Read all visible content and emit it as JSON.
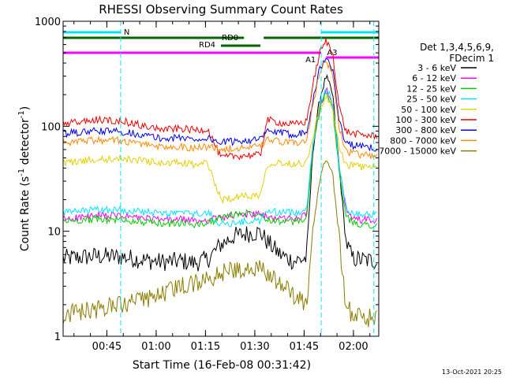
{
  "chart_data": {
    "type": "line",
    "title": "RHESSI Observing Summary Count Rates",
    "xlabel": "Start Time (16-Feb-08 00:31:42)",
    "ylabel_main": "Count Rate (s",
    "ylabel_sup1": "-1",
    "ylabel_mid": " detector",
    "ylabel_sup2": "-1",
    "ylabel_end": ")",
    "yscale": "log",
    "ylim": [
      1,
      1000
    ],
    "xlim_minutes": [
      0,
      96
    ],
    "x_ticks": [
      {
        "label": "00:45",
        "minutes": 13.3
      },
      {
        "label": "01:00",
        "minutes": 28.3
      },
      {
        "label": "01:15",
        "minutes": 43.3
      },
      {
        "label": "01:30",
        "minutes": 58.3
      },
      {
        "label": "01:45",
        "minutes": 73.3
      },
      {
        "label": "02:00",
        "minutes": 88.3
      }
    ],
    "y_ticks": [
      {
        "label": "1",
        "value": 1
      },
      {
        "label": "10",
        "value": 10
      },
      {
        "label": "100",
        "value": 100
      },
      {
        "label": "1000",
        "value": 1000
      }
    ],
    "legend_header": [
      "Det 1,3,4,5,6,9,",
      "FDecim 1"
    ],
    "series": [
      {
        "name": "3 - 6 keV",
        "color": "#000000",
        "x": [
          0,
          10,
          18,
          25,
          30,
          36,
          40,
          44,
          48,
          52,
          56,
          60,
          62,
          66,
          70,
          74,
          76,
          78,
          80,
          82,
          84,
          86,
          88,
          92,
          96
        ],
        "y": [
          5.5,
          5.8,
          5.7,
          5.3,
          5.1,
          5.2,
          5.0,
          5.4,
          7.5,
          9.0,
          9.5,
          9.8,
          8.0,
          6.0,
          5.2,
          5.5,
          60,
          180,
          300,
          200,
          40,
          8,
          5.5,
          5.3,
          5.2
        ]
      },
      {
        "name": "6 - 12 keV",
        "color": "#ff00ff",
        "x": [
          0,
          10,
          18,
          25,
          30,
          36,
          40,
          44,
          48,
          52,
          56,
          60,
          62,
          66,
          70,
          74,
          76,
          78,
          80,
          82,
          84,
          86,
          88,
          92,
          96
        ],
        "y": [
          13,
          14,
          14,
          13.2,
          12.8,
          13,
          12.5,
          12.8,
          13.5,
          14,
          14.5,
          14.5,
          13.5,
          13.3,
          13.2,
          14,
          70,
          150,
          240,
          160,
          40,
          16,
          13,
          12.8,
          12.6
        ]
      },
      {
        "name": "12 - 25 keV",
        "color": "#00cc00",
        "x": [
          0,
          10,
          18,
          25,
          30,
          36,
          40,
          44,
          48,
          52,
          56,
          60,
          62,
          66,
          70,
          74,
          76,
          78,
          80,
          82,
          84,
          86,
          88,
          92,
          96
        ],
        "y": [
          12.5,
          13,
          12.8,
          12.2,
          11.8,
          12,
          11.5,
          12,
          13.5,
          14.5,
          15,
          15,
          13,
          12.5,
          12.2,
          13,
          60,
          140,
          220,
          150,
          35,
          14,
          12,
          11.6,
          11.4
        ]
      },
      {
        "name": "25 - 50 keV",
        "color": "#00e5ff",
        "x": [
          0,
          10,
          18,
          25,
          30,
          36,
          40,
          44,
          48,
          52,
          56,
          60,
          62,
          66,
          70,
          74,
          76,
          78,
          80,
          82,
          84,
          86,
          88,
          92,
          96
        ],
        "y": [
          15,
          16,
          16,
          15.2,
          14.6,
          15,
          14.5,
          15,
          11.5,
          12,
          12.5,
          12.5,
          15.5,
          15.2,
          15,
          16,
          70,
          160,
          230,
          170,
          40,
          17,
          15,
          14.5,
          14.3
        ]
      },
      {
        "name": "50 - 100 keV",
        "color": "#e5d000",
        "x": [
          0,
          10,
          18,
          25,
          30,
          36,
          40,
          44,
          48,
          52,
          56,
          60,
          62,
          66,
          70,
          74,
          76,
          78,
          80,
          82,
          84,
          86,
          88,
          92,
          96
        ],
        "y": [
          45,
          48,
          49,
          47,
          44,
          45,
          43,
          44,
          20,
          21,
          22,
          22,
          44,
          45,
          44,
          45,
          80,
          150,
          190,
          150,
          60,
          44,
          42,
          41,
          40
        ]
      },
      {
        "name": "100 - 300 keV",
        "color": "#ee0000",
        "x": [
          0,
          10,
          18,
          25,
          30,
          36,
          40,
          44,
          48,
          52,
          56,
          60,
          62,
          66,
          70,
          74,
          76,
          78,
          80,
          82,
          84,
          86,
          88,
          92,
          96
        ],
        "y": [
          105,
          115,
          112,
          100,
          93,
          95,
          92,
          94,
          50,
          52,
          53,
          53,
          115,
          108,
          104,
          110,
          250,
          500,
          650,
          500,
          150,
          90,
          85,
          82,
          80
        ]
      },
      {
        "name": "300 - 800 keV",
        "color": "#0000ee",
        "x": [
          0,
          10,
          18,
          25,
          30,
          36,
          40,
          44,
          48,
          52,
          56,
          60,
          62,
          66,
          70,
          74,
          76,
          78,
          80,
          82,
          84,
          86,
          88,
          92,
          96
        ],
        "y": [
          85,
          90,
          89,
          82,
          76,
          78,
          75,
          77,
          70,
          72,
          74,
          74,
          90,
          86,
          84,
          88,
          180,
          350,
          450,
          350,
          110,
          70,
          66,
          63,
          62
        ]
      },
      {
        "name": "800 - 7000 keV",
        "color": "#ff8800",
        "x": [
          0,
          10,
          18,
          25,
          30,
          36,
          40,
          44,
          48,
          52,
          56,
          60,
          62,
          66,
          70,
          74,
          76,
          78,
          80,
          82,
          84,
          86,
          88,
          92,
          96
        ],
        "y": [
          70,
          74,
          73,
          67,
          63,
          64,
          62,
          64,
          60,
          62,
          63,
          63,
          74,
          71,
          69,
          72,
          160,
          320,
          420,
          320,
          95,
          58,
          55,
          53,
          52
        ]
      },
      {
        "name": "7000 - 15000 keV",
        "color": "#8b7d00",
        "x": [
          0,
          10,
          18,
          25,
          30,
          36,
          40,
          44,
          48,
          52,
          56,
          60,
          62,
          66,
          70,
          74,
          76,
          78,
          80,
          82,
          84,
          86,
          88,
          92,
          96
        ],
        "y": [
          1.6,
          1.8,
          2.0,
          2.2,
          2.5,
          3.0,
          3.2,
          3.5,
          4.0,
          4.3,
          4.5,
          4.4,
          4.0,
          3.2,
          2.5,
          2.0,
          10,
          30,
          50,
          35,
          8,
          2.0,
          1.6,
          1.5,
          1.5
        ]
      }
    ],
    "annotations": {
      "N_label": "N",
      "RD0_label": "RD0",
      "RD4_label": "RD4",
      "A1_label": "A1",
      "A3_label": "A3",
      "night_color": "#00e5ff",
      "rd_color": "#006600",
      "atten_color": "#ff00ff",
      "night_boundaries_minutes": [
        17.5,
        78.5,
        94.5
      ],
      "night_spans_minutes": [
        [
          0,
          17.5
        ],
        [
          78.5,
          96
        ]
      ],
      "rd0_spans_minutes": [
        [
          0,
          55
        ],
        [
          61,
          96
        ]
      ],
      "rd4_spans_minutes": [
        [
          48,
          60
        ]
      ],
      "atten_a1_span_minutes": [
        [
          0,
          78.5
        ]
      ],
      "atten_a3_span_minutes": [
        [
          80,
          96
        ]
      ]
    },
    "timestamp": "13-Oct-2021 20:25"
  }
}
